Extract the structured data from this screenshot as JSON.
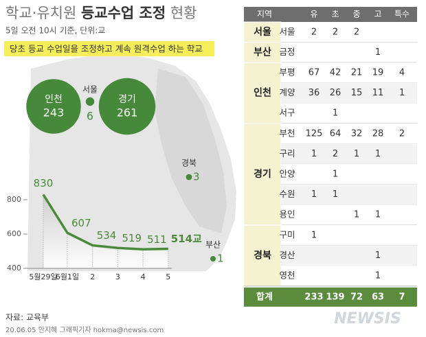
{
  "header": {
    "title": [
      "학교·유치원 ",
      "등교수업 조정",
      " 현황"
    ],
    "subtitle": "5일 오전 10시 기준, 단위:교",
    "banner": "당초 등교 수업일을 조정하고 계속 원격수업 하는 학교"
  },
  "map": {
    "regions": [
      {
        "name": "인천",
        "value": 243
      },
      {
        "name": "서울",
        "value": 6
      },
      {
        "name": "경기",
        "value": 261
      },
      {
        "name": "경북",
        "value": 3
      },
      {
        "name": "부산",
        "value": 1
      }
    ]
  },
  "chart_data": {
    "type": "line",
    "categories": [
      "5월29일",
      "6월1일",
      "2",
      "3",
      "4",
      "5"
    ],
    "values": [
      830,
      607,
      534,
      519,
      511,
      514
    ],
    "value_labels": [
      "830",
      "607",
      "534",
      "519",
      "511",
      "514교"
    ],
    "color": "#4a8a3a",
    "ylim": [
      400,
      880
    ],
    "yticks": [
      400,
      600,
      800
    ]
  },
  "table": {
    "header": [
      "지역",
      "유",
      "초",
      "중",
      "고",
      "특수"
    ],
    "groups": [
      {
        "region": "서울",
        "rows": [
          {
            "district": "서울",
            "values": [
              2,
              2,
              2,
              null,
              null
            ]
          }
        ]
      },
      {
        "region": "부산",
        "rows": [
          {
            "district": "금정",
            "values": [
              null,
              null,
              null,
              1,
              null
            ]
          }
        ]
      },
      {
        "region": "인천",
        "rows": [
          {
            "district": "부평",
            "values": [
              67,
              42,
              21,
              19,
              4
            ]
          },
          {
            "district": "계양",
            "values": [
              36,
              26,
              15,
              11,
              1
            ]
          },
          {
            "district": "서구",
            "values": [
              null,
              1,
              null,
              null,
              null
            ]
          }
        ]
      },
      {
        "region": "경기",
        "rows": [
          {
            "district": "부천",
            "values": [
              125,
              64,
              32,
              28,
              2
            ]
          },
          {
            "district": "구리",
            "values": [
              1,
              2,
              1,
              1,
              null
            ]
          },
          {
            "district": "안양",
            "values": [
              null,
              1,
              null,
              null,
              null
            ]
          },
          {
            "district": "수원",
            "values": [
              1,
              1,
              null,
              null,
              null
            ]
          },
          {
            "district": "용인",
            "values": [
              null,
              null,
              1,
              1,
              null
            ]
          }
        ]
      },
      {
        "region": "경북",
        "rows": [
          {
            "district": "구미",
            "values": [
              1,
              null,
              null,
              null,
              null
            ]
          },
          {
            "district": "경산",
            "values": [
              null,
              null,
              null,
              1,
              null
            ]
          },
          {
            "district": "영천",
            "values": [
              null,
              null,
              null,
              1,
              null
            ]
          }
        ]
      }
    ],
    "total": {
      "label": "합계",
      "values": [
        233,
        139,
        72,
        63,
        7
      ]
    }
  },
  "footer": {
    "source": "자료: 교육부",
    "credit": "20.06.05 안지혜 그래픽기자 hokma@newsis.com",
    "logo": "NEWSIS"
  }
}
